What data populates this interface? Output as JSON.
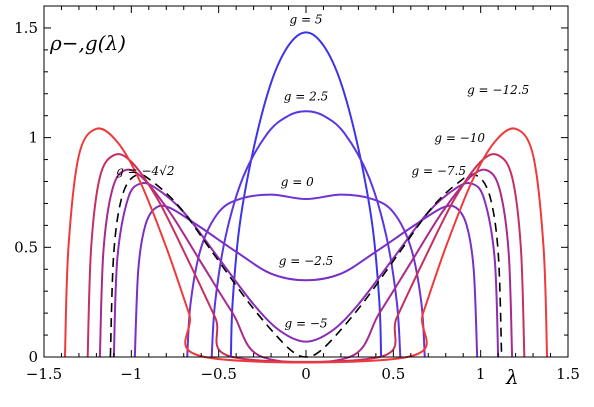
{
  "chart_data": {
    "type": "line",
    "xlim": [
      -1.5,
      1.5
    ],
    "ylim": [
      0,
      1.6
    ],
    "xlabel": "λ",
    "ylabel": "ρ−,g(λ)",
    "x_ticks": [
      "−1.5",
      "−1",
      "−0.5",
      "0",
      "0.5",
      "1",
      "1.5"
    ],
    "y_ticks": [
      "0",
      "0.5",
      "1",
      "1.5"
    ],
    "grid": false,
    "legend": "none",
    "series": [
      {
        "name": "g = 5",
        "color": "#3b35e6",
        "dashed": false,
        "label": {
          "text": "g = 5",
          "x": 0.0,
          "y": 1.52
        },
        "points": [
          [
            -0.43,
            0
          ],
          [
            -0.42,
            0.25
          ],
          [
            -0.38,
            0.6
          ],
          [
            -0.3,
            0.95
          ],
          [
            -0.2,
            1.25
          ],
          [
            -0.1,
            1.42
          ],
          [
            0,
            1.48
          ],
          [
            0.1,
            1.42
          ],
          [
            0.2,
            1.25
          ],
          [
            0.3,
            0.95
          ],
          [
            0.38,
            0.6
          ],
          [
            0.42,
            0.25
          ],
          [
            0.43,
            0
          ]
        ]
      },
      {
        "name": "g = 2.5",
        "color": "#5a36e0",
        "dashed": false,
        "label": {
          "text": "g = 2.5",
          "x": 0.0,
          "y": 1.17
        },
        "points": [
          [
            -0.54,
            0
          ],
          [
            -0.52,
            0.25
          ],
          [
            -0.46,
            0.55
          ],
          [
            -0.36,
            0.82
          ],
          [
            -0.22,
            1.02
          ],
          [
            -0.1,
            1.1
          ],
          [
            0,
            1.12
          ],
          [
            0.1,
            1.1
          ],
          [
            0.22,
            1.02
          ],
          [
            0.36,
            0.82
          ],
          [
            0.46,
            0.55
          ],
          [
            0.52,
            0.25
          ],
          [
            0.54,
            0
          ]
        ]
      },
      {
        "name": "g = 0",
        "color": "#6e33d2",
        "dashed": false,
        "label": {
          "text": "g = 0",
          "x": -0.05,
          "y": 0.78
        },
        "points": [
          [
            -0.68,
            0
          ],
          [
            -0.66,
            0.25
          ],
          [
            -0.6,
            0.5
          ],
          [
            -0.5,
            0.66
          ],
          [
            -0.38,
            0.72
          ],
          [
            -0.2,
            0.74
          ],
          [
            0,
            0.72
          ],
          [
            0.2,
            0.74
          ],
          [
            0.38,
            0.72
          ],
          [
            0.5,
            0.66
          ],
          [
            0.6,
            0.5
          ],
          [
            0.66,
            0.25
          ],
          [
            0.68,
            0
          ]
        ]
      },
      {
        "name": "g = −2.5",
        "color": "#7a2fc4",
        "dashed": false,
        "label": {
          "text": "g = −2.5",
          "x": 0.0,
          "y": 0.42
        },
        "points": [
          [
            -0.98,
            0
          ],
          [
            -0.96,
            0.4
          ],
          [
            -0.92,
            0.6
          ],
          [
            -0.86,
            0.68
          ],
          [
            -0.78,
            0.68
          ],
          [
            -0.62,
            0.6
          ],
          [
            -0.4,
            0.48
          ],
          [
            -0.2,
            0.38
          ],
          [
            0,
            0.35
          ],
          [
            0.2,
            0.38
          ],
          [
            0.4,
            0.48
          ],
          [
            0.62,
            0.6
          ],
          [
            0.78,
            0.68
          ],
          [
            0.86,
            0.68
          ],
          [
            0.92,
            0.6
          ],
          [
            0.96,
            0.4
          ],
          [
            0.98,
            0
          ]
        ]
      },
      {
        "name": "g = −5",
        "color": "#8b2eb3",
        "dashed": false,
        "label": {
          "text": "g = −5",
          "x": 0.0,
          "y": 0.135
        },
        "points": [
          [
            -1.1,
            0
          ],
          [
            -1.08,
            0.45
          ],
          [
            -1.02,
            0.72
          ],
          [
            -0.95,
            0.79
          ],
          [
            -0.86,
            0.77
          ],
          [
            -0.7,
            0.66
          ],
          [
            -0.5,
            0.45
          ],
          [
            -0.3,
            0.24
          ],
          [
            -0.15,
            0.12
          ],
          [
            0,
            0.07
          ],
          [
            0.15,
            0.12
          ],
          [
            0.3,
            0.24
          ],
          [
            0.5,
            0.45
          ],
          [
            0.7,
            0.66
          ],
          [
            0.86,
            0.77
          ],
          [
            0.95,
            0.79
          ],
          [
            1.02,
            0.72
          ],
          [
            1.08,
            0.45
          ],
          [
            1.1,
            0
          ]
        ]
      },
      {
        "name": "g = −4√2",
        "color": "#000000",
        "dashed": true,
        "label": {
          "text": "g = −4√2",
          "x": -0.92,
          "y": 0.83
        },
        "points": [
          [
            -1.12,
            0
          ],
          [
            -1.1,
            0.48
          ],
          [
            -1.05,
            0.74
          ],
          [
            -0.97,
            0.83
          ],
          [
            -0.88,
            0.8
          ],
          [
            -0.72,
            0.68
          ],
          [
            -0.52,
            0.46
          ],
          [
            -0.32,
            0.24
          ],
          [
            -0.15,
            0.08
          ],
          [
            -0.06,
            0.015
          ],
          [
            0,
            0
          ],
          [
            0.06,
            0.015
          ],
          [
            0.15,
            0.08
          ],
          [
            0.32,
            0.24
          ],
          [
            0.52,
            0.46
          ],
          [
            0.72,
            0.68
          ],
          [
            0.88,
            0.8
          ],
          [
            0.97,
            0.83
          ],
          [
            1.05,
            0.74
          ],
          [
            1.1,
            0.48
          ],
          [
            1.12,
            0
          ]
        ]
      },
      {
        "name": "g = −7.5",
        "color": "#a82a8e",
        "dashed": false,
        "label": {
          "text": "g = −7.5",
          "x": 0.76,
          "y": 0.83
        },
        "points": [
          [
            -1.18,
            0
          ],
          [
            -1.16,
            0.48
          ],
          [
            -1.11,
            0.76
          ],
          [
            -1.04,
            0.85
          ],
          [
            -0.94,
            0.82
          ],
          [
            -0.78,
            0.66
          ],
          [
            -0.6,
            0.43
          ],
          [
            -0.42,
            0.2
          ],
          [
            -0.25,
            0
          ],
          [
            0.25,
            0
          ],
          [
            0.42,
            0.2
          ],
          [
            0.6,
            0.43
          ],
          [
            0.78,
            0.66
          ],
          [
            0.94,
            0.82
          ],
          [
            1.04,
            0.85
          ],
          [
            1.11,
            0.76
          ],
          [
            1.16,
            0.48
          ],
          [
            1.18,
            0
          ]
        ]
      },
      {
        "name": "g = −10",
        "color": "#c6305e",
        "dashed": false,
        "label": {
          "text": "g = −10",
          "x": 0.88,
          "y": 0.98
        },
        "points": [
          [
            -1.25,
            0
          ],
          [
            -1.23,
            0.5
          ],
          [
            -1.18,
            0.82
          ],
          [
            -1.1,
            0.92
          ],
          [
            -1.0,
            0.89
          ],
          [
            -0.85,
            0.72
          ],
          [
            -0.68,
            0.45
          ],
          [
            -0.52,
            0.18
          ],
          [
            -0.42,
            0
          ],
          [
            0.42,
            0
          ],
          [
            0.52,
            0.18
          ],
          [
            0.68,
            0.45
          ],
          [
            0.85,
            0.72
          ],
          [
            1.0,
            0.89
          ],
          [
            1.1,
            0.92
          ],
          [
            1.18,
            0.82
          ],
          [
            1.23,
            0.5
          ],
          [
            1.25,
            0
          ]
        ]
      },
      {
        "name": "g = −12.5",
        "color": "#ee3a3a",
        "dashed": false,
        "label": {
          "text": "g = −12.5",
          "x": 1.1,
          "y": 1.2
        },
        "points": [
          [
            -1.38,
            0
          ],
          [
            -1.36,
            0.5
          ],
          [
            -1.3,
            0.92
          ],
          [
            -1.2,
            1.04
          ],
          [
            -1.08,
            0.98
          ],
          [
            -0.95,
            0.8
          ],
          [
            -0.8,
            0.5
          ],
          [
            -0.67,
            0.2
          ],
          [
            -0.58,
            0
          ],
          [
            0.58,
            0
          ],
          [
            0.67,
            0.2
          ],
          [
            0.8,
            0.5
          ],
          [
            0.95,
            0.8
          ],
          [
            1.08,
            0.98
          ],
          [
            1.2,
            1.04
          ],
          [
            1.3,
            0.92
          ],
          [
            1.36,
            0.5
          ],
          [
            1.38,
            0
          ]
        ]
      }
    ]
  }
}
